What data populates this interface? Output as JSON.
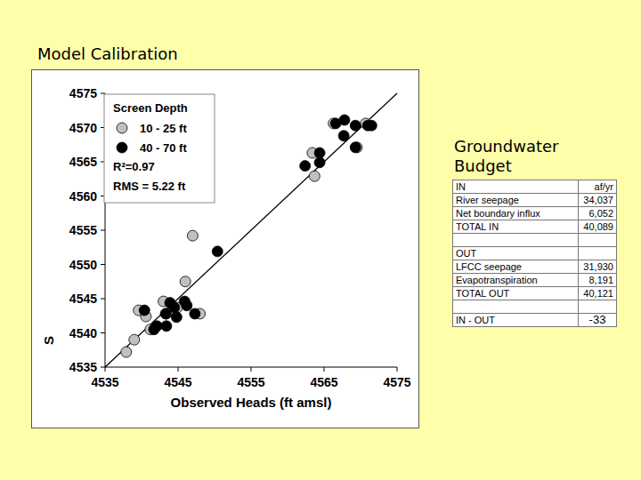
{
  "chart_data": {
    "type": "scatter",
    "x_label": "Observed Heads (ft amsl)",
    "y_label": "S",
    "legend_title": "Screen Depth",
    "annotations": [
      "R²=0.97",
      "RMS = 5.22 ft"
    ],
    "legend": "top-left",
    "xlim": [
      4535,
      4575
    ],
    "xticks": [
      4535,
      4545,
      4555,
      4565,
      4575
    ],
    "ylim": [
      4535,
      4575
    ],
    "yticks": [
      4535,
      4540,
      4545,
      4550,
      4555,
      4560,
      4565,
      4570,
      4575
    ],
    "series": [
      {
        "name": "10 - 25 ft",
        "color": "#c0c0c0",
        "marker": "circle",
        "x": [
          4537.9,
          4539.0,
          4539.6,
          4540.6,
          4541.2,
          4543.0,
          4543.4,
          4544.9,
          4546.0,
          4547.0,
          4548.0,
          4563.4,
          4563.7,
          4566.3,
          4569.5,
          4570.7
        ],
        "values": [
          4537.2,
          4539.0,
          4543.3,
          4542.4,
          4540.5,
          4544.6,
          4542.8,
          4543.7,
          4547.5,
          4554.2,
          4542.8,
          4566.3,
          4562.9,
          4570.6,
          4567.1,
          4570.6
        ]
      },
      {
        "name": "40 - 70 ft",
        "color": "#000000",
        "marker": "circle",
        "x": [
          4540.4,
          4541.7,
          4542.1,
          4543.4,
          4543.3,
          4544.5,
          4544.8,
          4545.9,
          4546.2,
          4547.3,
          4550.4,
          4562.4,
          4564.4,
          4564.4,
          4566.6,
          4567.7,
          4567.8,
          4569.3,
          4569.3,
          4571.0,
          4571.5,
          4543.9
        ],
        "values": [
          4543.3,
          4540.5,
          4541.0,
          4541.0,
          4542.8,
          4543.7,
          4542.3,
          4544.6,
          4544.0,
          4542.8,
          4551.9,
          4564.4,
          4566.3,
          4564.9,
          4570.6,
          4568.8,
          4571.1,
          4570.3,
          4567.1,
          4570.3,
          4570.3,
          4544.4
        ]
      },
      {
        "type": "line",
        "color": "#000000",
        "line_style": "solid",
        "x": [
          4535,
          4575
        ],
        "values": [
          4535,
          4575
        ]
      }
    ]
  },
  "slide": {
    "title": "Model Calibration",
    "budget": {
      "title": "Groundwater Budget",
      "in": {
        "header": [
          "IN",
          "af/yr"
        ],
        "rows": [
          [
            "River seepage",
            "34,037"
          ],
          [
            "Net boundary influx",
            "6,052"
          ]
        ],
        "total": [
          "TOTAL IN",
          "40,089"
        ]
      },
      "out": {
        "header": "OUT",
        "rows": [
          [
            "LFCC seepage",
            "31,930"
          ],
          [
            "Evapotranspiration",
            "8,191"
          ]
        ],
        "total": [
          "TOTAL OUT",
          "40,121"
        ]
      },
      "balance": [
        "IN - OUT",
        "-33"
      ]
    }
  }
}
